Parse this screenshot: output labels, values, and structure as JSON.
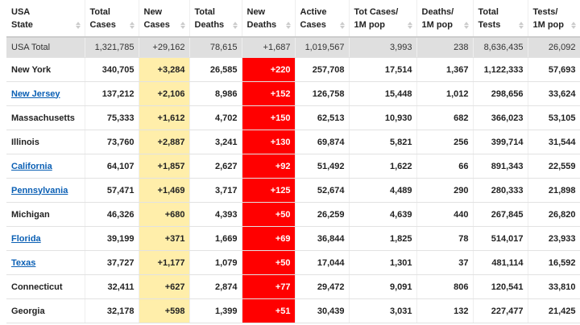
{
  "table": {
    "headers": [
      [
        "USA",
        "State"
      ],
      [
        "Total",
        "Cases"
      ],
      [
        "New",
        "Cases"
      ],
      [
        "Total",
        "Deaths"
      ],
      [
        "New",
        "Deaths"
      ],
      [
        "Active",
        "Cases"
      ],
      [
        "Tot Cases/",
        "1M pop"
      ],
      [
        "Deaths/",
        "1M pop"
      ],
      [
        "Total",
        "Tests"
      ],
      [
        "Tests/",
        "1M pop"
      ]
    ],
    "total": [
      "USA Total",
      "1,321,785",
      "+29,162",
      "78,615",
      "+1,687",
      "1,019,567",
      "3,993",
      "238",
      "8,636,435",
      "26,092"
    ],
    "rows": [
      [
        "New York",
        "340,705",
        "+3,284",
        "26,585",
        "+220",
        "257,708",
        "17,514",
        "1,367",
        "1,122,333",
        "57,693"
      ],
      [
        "New Jersey",
        "137,212",
        "+2,106",
        "8,986",
        "+152",
        "126,758",
        "15,448",
        "1,012",
        "298,656",
        "33,624"
      ],
      [
        "Massachusetts",
        "75,333",
        "+1,612",
        "4,702",
        "+150",
        "62,513",
        "10,930",
        "682",
        "366,023",
        "53,105"
      ],
      [
        "Illinois",
        "73,760",
        "+2,887",
        "3,241",
        "+130",
        "69,874",
        "5,821",
        "256",
        "399,714",
        "31,544"
      ],
      [
        "California",
        "64,107",
        "+1,857",
        "2,627",
        "+92",
        "51,492",
        "1,622",
        "66",
        "891,343",
        "22,559"
      ],
      [
        "Pennsylvania",
        "57,471",
        "+1,469",
        "3,717",
        "+125",
        "52,674",
        "4,489",
        "290",
        "280,333",
        "21,898"
      ],
      [
        "Michigan",
        "46,326",
        "+680",
        "4,393",
        "+50",
        "26,259",
        "4,639",
        "440",
        "267,845",
        "26,820"
      ],
      [
        "Florida",
        "39,199",
        "+371",
        "1,669",
        "+69",
        "36,844",
        "1,825",
        "78",
        "514,017",
        "23,933"
      ],
      [
        "Texas",
        "37,727",
        "+1,177",
        "1,079",
        "+50",
        "17,044",
        "1,301",
        "37",
        "481,114",
        "16,592"
      ],
      [
        "Connecticut",
        "32,411",
        "+627",
        "2,874",
        "+77",
        "29,472",
        "9,091",
        "806",
        "120,541",
        "33,810"
      ],
      [
        "Georgia",
        "32,178",
        "+598",
        "1,399",
        "+51",
        "30,439",
        "3,031",
        "132",
        "227,477",
        "21,425"
      ]
    ]
  }
}
